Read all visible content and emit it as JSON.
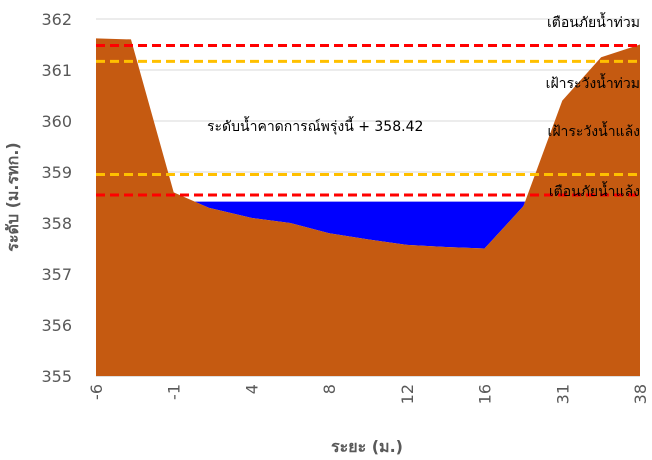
{
  "chart_data": {
    "type": "area",
    "title": "",
    "xlabel": "ระยะ (ม.)",
    "ylabel": "ระดับ (ม.รทก.)",
    "ylim": [
      355,
      362
    ],
    "y_ticks": [
      355,
      356,
      357,
      358,
      359,
      360,
      361,
      362
    ],
    "categories": [
      "-6",
      "-1",
      "4",
      "8",
      "12",
      "16",
      "31",
      "38"
    ],
    "grid": "horizontal",
    "series": [
      {
        "kind": "ground",
        "color": "#C55A11",
        "points": [
          [
            0.0,
            361.62
          ],
          [
            0.45,
            361.6
          ],
          [
            1.0,
            358.6
          ],
          [
            1.45,
            358.3
          ],
          [
            2.0,
            358.1
          ],
          [
            2.5,
            358.0
          ],
          [
            3.0,
            357.8
          ],
          [
            3.5,
            357.68
          ],
          [
            4.0,
            357.57
          ],
          [
            4.5,
            357.53
          ],
          [
            5.0,
            357.5
          ],
          [
            5.5,
            358.33
          ],
          [
            6.0,
            360.4
          ],
          [
            6.5,
            361.25
          ],
          [
            7.0,
            361.5
          ]
        ]
      },
      {
        "kind": "water",
        "color": "#0000FF",
        "level": 358.42
      }
    ],
    "reference_lines": [
      {
        "label": "เตือนภัยน้ำท่วม",
        "value": 361.48,
        "color": "#FF0000"
      },
      {
        "label": "เฝ้าระวังน้ำท่วม",
        "value": 361.17,
        "color": "#FFC000"
      },
      {
        "label": "เฝ้าระวังน้ำแล้ง",
        "value": 358.95,
        "color": "#FFC000"
      },
      {
        "label": "เตือนภัยน้ำแล้ง",
        "value": 358.55,
        "color": "#FF0000"
      }
    ],
    "annotation": "ระดับน้ำคาดการณ์พรุ่งนี้ + 358.42"
  }
}
